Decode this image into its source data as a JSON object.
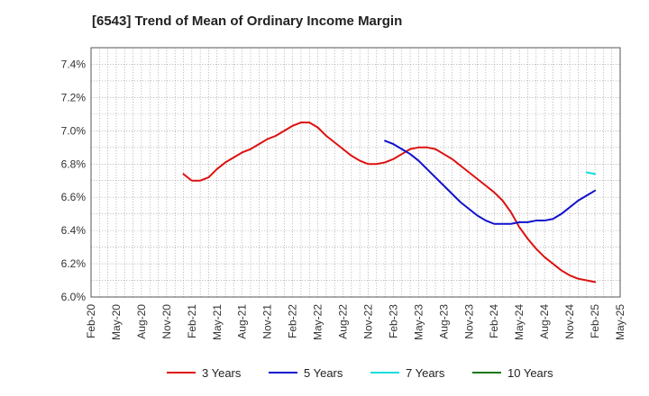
{
  "chart_data": {
    "type": "line",
    "title": "[6543]  Trend of Mean of Ordinary Income Margin",
    "xlabel": "",
    "ylabel": "",
    "ylim": [
      6.0,
      7.5
    ],
    "y_ticks": [
      6.0,
      6.2,
      6.4,
      6.6,
      6.8,
      7.0,
      7.2,
      7.4
    ],
    "y_tick_labels": [
      "6.0%",
      "6.2%",
      "6.4%",
      "6.6%",
      "6.8%",
      "7.0%",
      "7.2%",
      "7.4%"
    ],
    "x_ticks": [
      "Feb-20",
      "May-20",
      "Aug-20",
      "Nov-20",
      "Feb-21",
      "May-21",
      "Aug-21",
      "Nov-21",
      "Feb-22",
      "May-22",
      "Aug-22",
      "Nov-22",
      "Feb-23",
      "May-23",
      "Aug-23",
      "Nov-23",
      "Feb-24",
      "May-24",
      "Aug-24",
      "Nov-24",
      "Feb-25",
      "May-25"
    ],
    "x_range": [
      "2020-02",
      "2025-05"
    ],
    "grid": true,
    "legend_position": "bottom",
    "series": [
      {
        "name": "3 Years",
        "color": "#dd1111",
        "points": [
          [
            "2021-01",
            6.74
          ],
          [
            "2021-02",
            6.7
          ],
          [
            "2021-03",
            6.7
          ],
          [
            "2021-04",
            6.72
          ],
          [
            "2021-05",
            6.77
          ],
          [
            "2021-06",
            6.81
          ],
          [
            "2021-07",
            6.84
          ],
          [
            "2021-08",
            6.87
          ],
          [
            "2021-09",
            6.89
          ],
          [
            "2021-10",
            6.92
          ],
          [
            "2021-11",
            6.95
          ],
          [
            "2021-12",
            6.97
          ],
          [
            "2022-01",
            7.0
          ],
          [
            "2022-02",
            7.03
          ],
          [
            "2022-03",
            7.05
          ],
          [
            "2022-04",
            7.05
          ],
          [
            "2022-05",
            7.02
          ],
          [
            "2022-06",
            6.97
          ],
          [
            "2022-07",
            6.93
          ],
          [
            "2022-08",
            6.89
          ],
          [
            "2022-09",
            6.85
          ],
          [
            "2022-10",
            6.82
          ],
          [
            "2022-11",
            6.8
          ],
          [
            "2022-12",
            6.8
          ],
          [
            "2023-01",
            6.81
          ],
          [
            "2023-02",
            6.83
          ],
          [
            "2023-03",
            6.86
          ],
          [
            "2023-04",
            6.89
          ],
          [
            "2023-05",
            6.9
          ],
          [
            "2023-06",
            6.9
          ],
          [
            "2023-07",
            6.89
          ],
          [
            "2023-08",
            6.86
          ],
          [
            "2023-09",
            6.83
          ],
          [
            "2023-10",
            6.79
          ],
          [
            "2023-11",
            6.75
          ],
          [
            "2023-12",
            6.71
          ],
          [
            "2024-01",
            6.67
          ],
          [
            "2024-02",
            6.63
          ],
          [
            "2024-03",
            6.58
          ],
          [
            "2024-04",
            6.51
          ],
          [
            "2024-05",
            6.42
          ],
          [
            "2024-06",
            6.35
          ],
          [
            "2024-07",
            6.29
          ],
          [
            "2024-08",
            6.24
          ],
          [
            "2024-09",
            6.2
          ],
          [
            "2024-10",
            6.16
          ],
          [
            "2024-11",
            6.13
          ],
          [
            "2024-12",
            6.11
          ],
          [
            "2025-01",
            6.1
          ],
          [
            "2025-02",
            6.09
          ]
        ]
      },
      {
        "name": "5 Years",
        "color": "#1111cc",
        "points": [
          [
            "2023-01",
            6.94
          ],
          [
            "2023-02",
            6.92
          ],
          [
            "2023-03",
            6.89
          ],
          [
            "2023-04",
            6.86
          ],
          [
            "2023-05",
            6.82
          ],
          [
            "2023-06",
            6.77
          ],
          [
            "2023-07",
            6.72
          ],
          [
            "2023-08",
            6.67
          ],
          [
            "2023-09",
            6.62
          ],
          [
            "2023-10",
            6.57
          ],
          [
            "2023-11",
            6.53
          ],
          [
            "2023-12",
            6.49
          ],
          [
            "2024-01",
            6.46
          ],
          [
            "2024-02",
            6.44
          ],
          [
            "2024-03",
            6.44
          ],
          [
            "2024-04",
            6.44
          ],
          [
            "2024-05",
            6.45
          ],
          [
            "2024-06",
            6.45
          ],
          [
            "2024-07",
            6.46
          ],
          [
            "2024-08",
            6.46
          ],
          [
            "2024-09",
            6.47
          ],
          [
            "2024-10",
            6.5
          ],
          [
            "2024-11",
            6.54
          ],
          [
            "2024-12",
            6.58
          ],
          [
            "2025-01",
            6.61
          ],
          [
            "2025-02",
            6.64
          ]
        ]
      },
      {
        "name": "7 Years",
        "color": "#11dddd",
        "points": [
          [
            "2025-01",
            6.75
          ],
          [
            "2025-02",
            6.74
          ]
        ]
      },
      {
        "name": "10 Years",
        "color": "#117711",
        "points": []
      }
    ]
  }
}
